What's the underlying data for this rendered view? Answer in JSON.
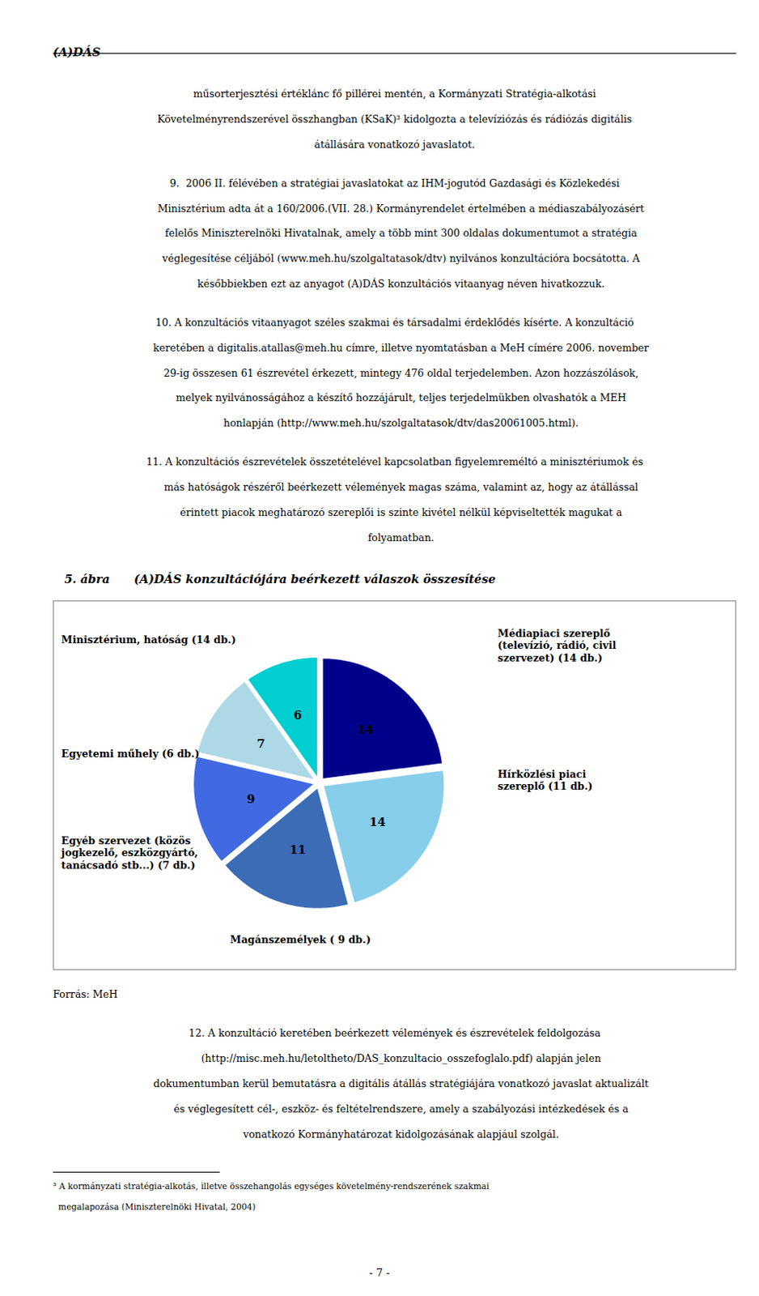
{
  "header": "(A)DÁS",
  "paragraphs": [
    [
      "műsorterjesztési értéklánc fő pillérei mentén, a Kormányzati Stratégia-alkotási",
      "Követelményrendszerével összhangban (KSaK)³ kidolgozta a televíziózás és rádiózás digitális",
      "átállására vonatkozó javaslatot."
    ],
    [
      "9.  2006 II. félévében a stratégiai javaslatokat az IHM-jogutód Gazdasági és Közlekedési",
      "    Minisztérium adta át a 160/2006.(VII. 28.) Kormányrendelet értelmében a médiaszabályozásért",
      "    felelős Miniszterelnöki Hivatalnak, amely a több mint 300 oldalas dokumentumot a stratégia",
      "    véglegesítése céljából (www.meh.hu/szolgaltatasok/dtv) nyilvános konzultációra bocsátotta. A",
      "    későbbiekben ezt az anyagot (A)DÁS konzultációs vitaanyag néven hivatkozzuk."
    ],
    [
      "10. A konzultációs vitaanyagot széles szakmai és társadalmi érdeklődés kísérte. A konzultáció",
      "    keretében a digitalis.atallas@meh.hu címre, illetve nyomtatásban a MeH címére 2006. november",
      "    29-ig összesen 61 észrevétel érkezett, mintegy 476 oldal terjedelemben. Azon hozzászólások,",
      "    melyek nyilvánosságához a készítő hozzájárult, teljes terjedelmükben olvashatók a MEH",
      "    honlapján (http://www.meh.hu/szolgaltatasok/dtv/das20061005.html)."
    ],
    [
      "11. A konzultációs észrevételek összetételével kapcsolatban figyelemreméltó a minisztériumok és",
      "    más hatóságok részéről beérkezett vélemények magas száma, valamint az, hogy az átállással",
      "    érintett piacok meghatározó szereplői is szinte kivétel nélkül képviseltették magukat a",
      "    folyamatban."
    ]
  ],
  "chart_data": {
    "type": "pie",
    "title": "5. ábra      (A)DÁS konzultációjára beérkezett válaszok összesítése",
    "categories": [
      "Minisztérium, hatóság (14 db.)",
      "Médiapiaci szereplő\n(televízió, rádió, civil\nszervezet) (14 db.)",
      "Hírközlési piaci\nszereplő (11 db.)",
      "Magánszemélyek ( 9 db.)",
      "Egyéb szervezet (közös\njogkezelő, eszközgyártó,\ntanácsadó stb...) (7 db.)",
      "Egyetemi műhely (6 db.)"
    ],
    "values": [
      14,
      14,
      11,
      9,
      7,
      6
    ],
    "colors": [
      "#00008B",
      "#87CEEB",
      "#3B6CB5",
      "#4169E1",
      "#ADD8E6",
      "#00CED1"
    ],
    "data_labels": true
  },
  "source": "Forrás: MeH",
  "paragraphs_after": [
    [
      "12. A konzultáció keretében beérkezett vélemények és észrevételek feldolgozása",
      "    (http://misc.meh.hu/letoltheto/DAS_konzultacio_osszefoglalo.pdf) alapján jelen",
      "    dokumentumban kerül bemutatásra a digitális átállás stratégiájára vonatkozó javaslat aktualizált",
      "    és véglegesített cél-, eszköz- és feltételrendszere, amely a szabályozási intézkedések és a",
      "    vonatkozó Kormányhatározat kidolgozásának alapjául szolgál."
    ]
  ],
  "footnote": [
    "³ A kormányzati stratégia-alkotás, illetve összehangolás egységes követelmény-rendszerének szakmai",
    "  megalapozása (Miniszterelnöki Hivatal, 2004)"
  ],
  "page_number": "- 7 -"
}
